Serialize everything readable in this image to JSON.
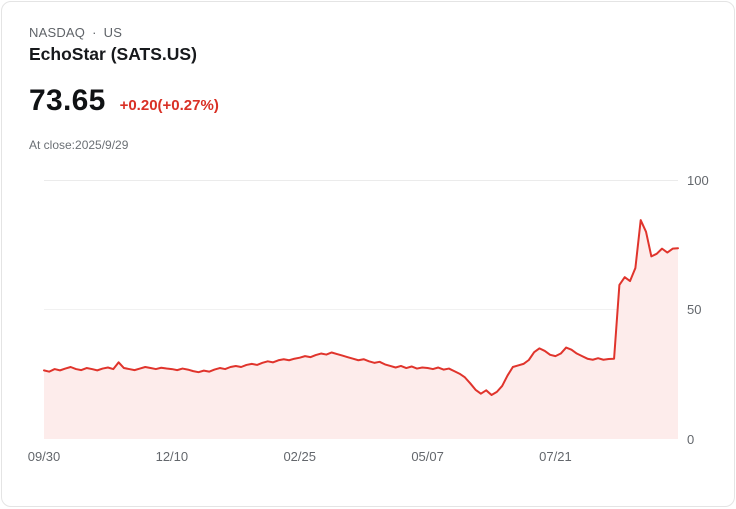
{
  "header": {
    "exchange": "NASDAQ",
    "separator": "·",
    "region": "US",
    "name": "EchoStar (SATS.US)",
    "price": "73.65",
    "change": "+0.20(+0.27%)",
    "as_of": "At close:2025/9/29"
  },
  "colors": {
    "line": "#e0342c",
    "fill": "#fdeceb",
    "change_text": "#d93025",
    "grid": "#ebebeb"
  },
  "chart_data": {
    "type": "area",
    "title": "",
    "xlabel": "",
    "ylabel": "",
    "ylim": [
      0,
      100
    ],
    "grid": "horizontal",
    "legend": "none",
    "y_tick_labels": [
      "100",
      "50",
      "0"
    ],
    "x_tick_labels": [
      "09/30",
      "12/10",
      "02/25",
      "05/07",
      "07/21"
    ],
    "x_tick_indices": [
      0,
      24,
      48,
      72,
      96
    ],
    "values": [
      26.5,
      26.0,
      27.0,
      26.5,
      27.2,
      27.8,
      27.0,
      26.6,
      27.4,
      27.0,
      26.5,
      27.2,
      27.6,
      27.0,
      29.6,
      27.4,
      27.0,
      26.6,
      27.2,
      27.8,
      27.4,
      27.0,
      27.5,
      27.2,
      27.0,
      26.6,
      27.2,
      26.8,
      26.2,
      25.8,
      26.4,
      26.0,
      26.8,
      27.4,
      27.0,
      27.8,
      28.2,
      27.8,
      28.6,
      29.0,
      28.6,
      29.4,
      30.0,
      29.6,
      30.4,
      30.8,
      30.4,
      31.0,
      31.4,
      32.0,
      31.6,
      32.4,
      33.0,
      32.6,
      33.4,
      32.8,
      32.2,
      31.6,
      31.0,
      30.4,
      30.8,
      30.0,
      29.4,
      29.8,
      28.8,
      28.2,
      27.6,
      28.2,
      27.4,
      28.0,
      27.2,
      27.6,
      27.4,
      27.0,
      27.6,
      26.8,
      27.2,
      26.2,
      25.2,
      23.8,
      21.5,
      19.0,
      17.5,
      18.8,
      17.0,
      18.2,
      20.5,
      24.5,
      27.8,
      28.4,
      29.0,
      30.5,
      33.5,
      35.0,
      34.0,
      32.5,
      32.0,
      33.0,
      35.3,
      34.5,
      33.0,
      32.0,
      31.0,
      30.6,
      31.2,
      30.6,
      30.9,
      31.0,
      59.5,
      62.5,
      61.0,
      66.0,
      84.5,
      80.0,
      70.5,
      71.5,
      73.5,
      72.0,
      73.5,
      73.65
    ]
  }
}
